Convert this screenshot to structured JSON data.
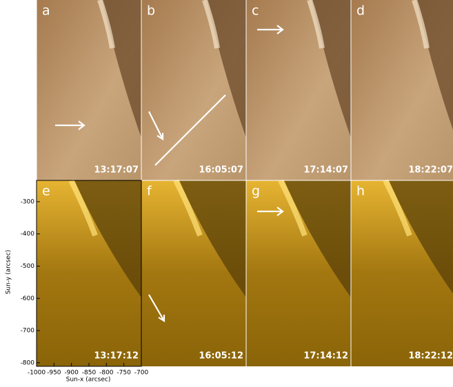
{
  "panels": [
    {
      "label": "a",
      "time": "13:17:07"
    },
    {
      "label": "b",
      "time": "16:05:07"
    },
    {
      "label": "c",
      "time": "17:14:07"
    },
    {
      "label": "d",
      "time": "18:22:07"
    },
    {
      "label": "e",
      "time": "13:17:12"
    },
    {
      "label": "f",
      "time": "16:05:12"
    },
    {
      "label": "g",
      "time": "17:14:12"
    },
    {
      "label": "h",
      "time": "18:22:12"
    }
  ],
  "y_axis": {
    "label": "Sun-y (arcsec)",
    "lim": [
      -234,
      -811
    ],
    "ticks": [
      -300,
      -400,
      -500,
      -600,
      -700,
      -800
    ]
  },
  "x_axis": {
    "label": "Sun-x (arcsec)",
    "lim": [
      -1000,
      -700
    ],
    "ticks": [
      -1000,
      -950,
      -900,
      -850,
      -800,
      -750,
      -700
    ]
  }
}
